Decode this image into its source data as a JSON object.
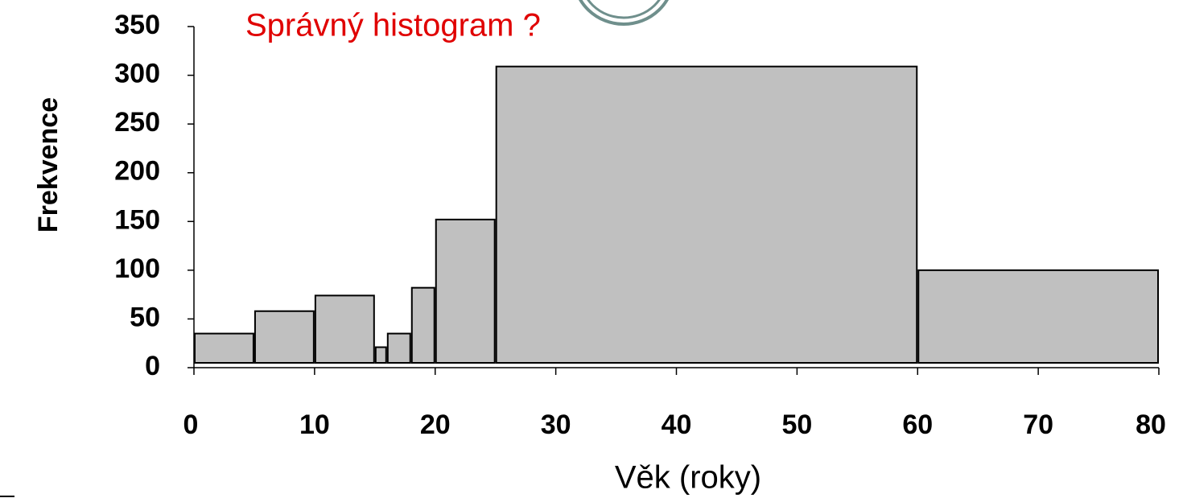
{
  "chart_data": {
    "type": "histogram",
    "title": "Správný histogram ?",
    "xlabel": "Věk (roky)",
    "ylabel": "Frekvence",
    "bins": [
      0,
      5,
      10,
      15,
      16,
      18,
      20,
      25,
      60,
      80
    ],
    "values": [
      35,
      58,
      74,
      21,
      35,
      82,
      152,
      309,
      100
    ],
    "color": "#c0c0c0",
    "xlim": [
      0,
      80
    ],
    "xticks": [
      0,
      10,
      20,
      30,
      40,
      50,
      60,
      70,
      80
    ],
    "ylim": [
      0,
      350
    ],
    "yticks": [
      0,
      50,
      100,
      150,
      200,
      250,
      300,
      350
    ],
    "grid": false
  }
}
